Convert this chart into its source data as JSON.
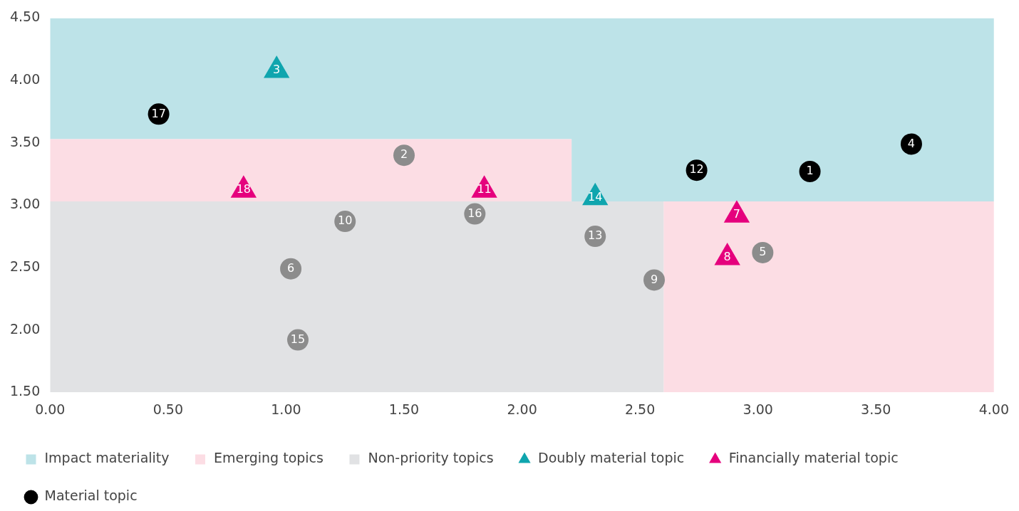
{
  "chart_data": {
    "type": "scatter",
    "xlim": [
      0,
      4
    ],
    "ylim": [
      1.5,
      4.5
    ],
    "xticks": [
      {
        "value": 0,
        "label": "0.00"
      },
      {
        "value": 0.5,
        "label": "0.50"
      },
      {
        "value": 1,
        "label": "1.00"
      },
      {
        "value": 1.5,
        "label": "1.50"
      },
      {
        "value": 2,
        "label": "2.00"
      },
      {
        "value": 2.5,
        "label": "2.50"
      },
      {
        "value": 3,
        "label": "3.00"
      },
      {
        "value": 3.5,
        "label": "3.50"
      },
      {
        "value": 4,
        "label": "4.00"
      }
    ],
    "yticks": [
      {
        "value": 1.5,
        "label": "1.50"
      },
      {
        "value": 2,
        "label": "2.00"
      },
      {
        "value": 2.5,
        "label": "2.50"
      },
      {
        "value": 3,
        "label": "3.00"
      },
      {
        "value": 3.5,
        "label": "3.50"
      },
      {
        "value": 4,
        "label": "4.00"
      },
      {
        "value": 4.5,
        "label": "4.50"
      }
    ],
    "grid": false,
    "legend": "bottom",
    "series": [
      {
        "name": "Impact materiality",
        "type": "area",
        "color": "#bde3e8",
        "x": [
          0,
          2.21,
          2.21,
          2.6,
          2.6,
          4
        ],
        "values": [
          4.5,
          4.5,
          4.5,
          4.5,
          4.5,
          4.5
        ]
      },
      {
        "name": "Emerging topics",
        "type": "area",
        "color": "#fcdde4",
        "x": [
          0,
          2.21,
          2.21,
          2.6,
          2.6,
          4
        ],
        "values": [
          3.53,
          3.53,
          3.03,
          3.03,
          3.03,
          3.03
        ]
      },
      {
        "name": "Non-priority topics",
        "type": "area",
        "color": "#e1e2e4",
        "x": [
          0,
          2.21,
          2.21,
          2.6,
          2.6,
          4
        ],
        "values": [
          3.03,
          3.03,
          3.03,
          3.03,
          1.5,
          1.5
        ]
      },
      {
        "name": "Doubly material topic",
        "color": "#0fa5ae",
        "marker": "triangle",
        "x": [
          0.96,
          2.31
        ],
        "values": [
          4.08,
          3.06
        ]
      },
      {
        "name": "Financially material topic",
        "color": "#e5007d",
        "marker": "triangle",
        "x": [
          0.82,
          1.84,
          2.91,
          2.87
        ],
        "values": [
          3.12,
          3.12,
          2.92,
          2.58
        ]
      },
      {
        "name": "Material topic",
        "color": "#000000",
        "marker": "circle",
        "x": [
          0.46,
          2.74,
          3.22,
          3.65
        ],
        "values": [
          3.73,
          3.28,
          3.27,
          3.49
        ]
      },
      {
        "color": "#8c8c8c",
        "marker": "circle",
        "x": [
          1.5,
          1.8,
          1.25,
          1.02,
          1.05,
          2.31,
          2.56,
          3.02
        ],
        "values": [
          3.4,
          2.93,
          2.87,
          2.49,
          1.92,
          2.75,
          2.4,
          2.62
        ]
      }
    ],
    "annotations": [
      {
        "text": "3",
        "x": 0.96,
        "y": 4.08
      },
      {
        "text": "14",
        "x": 2.31,
        "y": 3.06
      },
      {
        "text": "18",
        "x": 0.82,
        "y": 3.12
      },
      {
        "text": "11",
        "x": 1.84,
        "y": 3.12
      },
      {
        "text": "7",
        "x": 2.91,
        "y": 2.92
      },
      {
        "text": "8",
        "x": 2.87,
        "y": 2.58
      },
      {
        "text": "17",
        "x": 0.46,
        "y": 3.73
      },
      {
        "text": "12",
        "x": 2.74,
        "y": 3.28
      },
      {
        "text": "1",
        "x": 3.22,
        "y": 3.27
      },
      {
        "text": "4",
        "x": 3.65,
        "y": 3.49
      },
      {
        "text": "2",
        "x": 1.5,
        "y": 3.4
      },
      {
        "text": "16",
        "x": 1.8,
        "y": 2.93
      },
      {
        "text": "10",
        "x": 1.25,
        "y": 2.87
      },
      {
        "text": "6",
        "x": 1.02,
        "y": 2.49
      },
      {
        "text": "15",
        "x": 1.05,
        "y": 1.92
      },
      {
        "text": "13",
        "x": 2.31,
        "y": 2.75
      },
      {
        "text": "9",
        "x": 2.56,
        "y": 2.4
      },
      {
        "text": "5",
        "x": 3.02,
        "y": 2.62
      }
    ]
  }
}
